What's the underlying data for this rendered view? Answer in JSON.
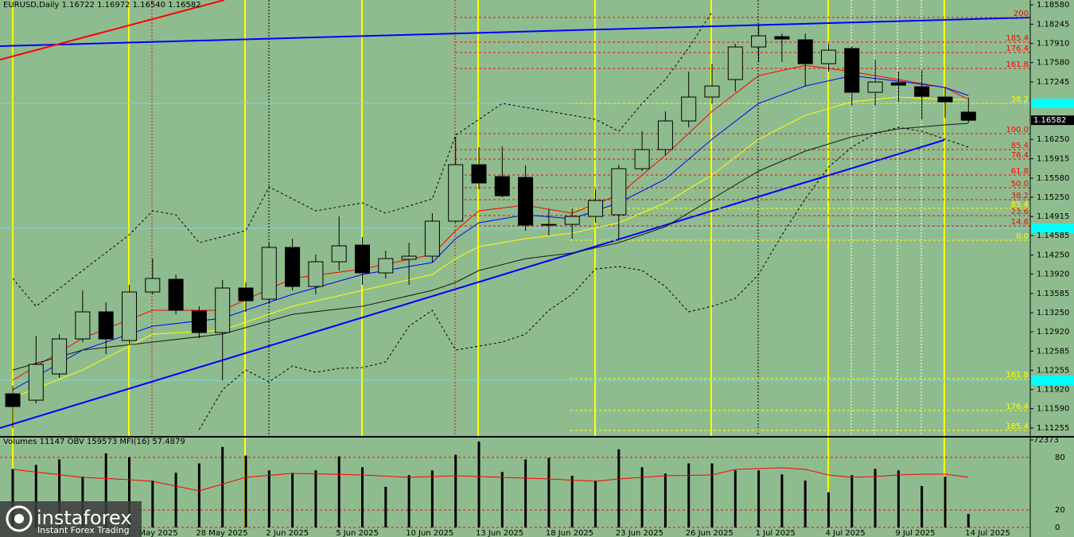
{
  "chart_data": [
    {
      "type": "candlestick",
      "title": "EURUSD,Daily  1.16722 1.16972 1.16540 1.16582",
      "categories": [
        null,
        null,
        null,
        null,
        null,
        "27 May 2025",
        null,
        null,
        "28 May 2025",
        null,
        null,
        "2 Jun 2025",
        null,
        null,
        "5 Jun 2025",
        null,
        null,
        "10 Jun 2025",
        null,
        null,
        "13 Jun 2025",
        null,
        null,
        "18 Jun 2025",
        null,
        null,
        "23 Jun 2025",
        null,
        null,
        "26 Jun 2025",
        null,
        null,
        "1 Jul 2025",
        null,
        null,
        "4 Jul 2025",
        null,
        null,
        "9 Jul 2025",
        null,
        null,
        "14 Jul 2025"
      ],
      "open": [
        1.11846,
        1.11736,
        1.12191,
        1.12797,
        1.13265,
        1.12769,
        1.13609,
        1.13829,
        1.13279,
        1.12907,
        1.13678,
        1.13485,
        1.1438,
        1.13705,
        1.14132,
        1.14421,
        1.1394,
        1.14174,
        1.14229,
        1.14835,
        1.15812,
        1.15606,
        1.15592,
        1.14779,
        1.14779,
        1.14917,
        1.14945,
        1.15743,
        1.16074,
        1.1657,
        1.16983,
        1.17286,
        1.1785,
        1.18029,
        1.17974,
        1.17561,
        1.17823,
        1.17065,
        1.1723,
        1.17162,
        1.16983,
        1.16722
      ],
      "high": [
        1.11984,
        1.12852,
        1.12879,
        1.13637,
        1.1343,
        1.13733,
        1.14187,
        1.13912,
        1.13361,
        1.13816,
        1.13774,
        1.14463,
        1.14532,
        1.14256,
        1.14917,
        1.14559,
        1.14325,
        1.14463,
        1.14972,
        1.16294,
        1.16115,
        1.16129,
        1.15798,
        1.15041,
        1.15055,
        1.15385,
        1.15812,
        1.16391,
        1.16735,
        1.17423,
        1.17561,
        1.17905,
        1.1825,
        1.18084,
        1.18084,
        1.17905,
        1.17864,
        1.1763,
        1.17423,
        1.17451,
        1.17148,
        1.16972
      ],
      "low": [
        1.11254,
        1.11681,
        1.12122,
        1.12742,
        1.12535,
        1.12714,
        1.13568,
        1.13223,
        1.1281,
        1.12081,
        1.13265,
        1.13402,
        1.13637,
        1.13568,
        1.13981,
        1.13733,
        1.13843,
        1.13733,
        1.14119,
        1.14807,
        1.15385,
        1.15248,
        1.14669,
        1.14587,
        1.14532,
        1.14807,
        1.1449,
        1.15702,
        1.15977,
        1.16459,
        1.16873,
        1.17079,
        1.17589,
        1.17589,
        1.17175,
        1.17423,
        1.16831,
        1.16831,
        1.169,
        1.16597,
        1.16625,
        1.1654
      ],
      "close": [
        1.11626,
        1.12356,
        1.12797,
        1.13265,
        1.12797,
        1.13609,
        1.13843,
        1.13292,
        1.12907,
        1.13678,
        1.13458,
        1.1438,
        1.13705,
        1.14132,
        1.14408,
        1.1394,
        1.14187,
        1.14229,
        1.14835,
        1.15812,
        1.15496,
        1.15275,
        1.14766,
        1.14766,
        1.14917,
        1.15193,
        1.15743,
        1.16074,
        1.1657,
        1.16983,
        1.17175,
        1.1785,
        1.18043,
        1.17988,
        1.17561,
        1.17795,
        1.17065,
        1.17244,
        1.17189,
        1.16996,
        1.169,
        1.16582
      ],
      "up_color": "#8fbc8f",
      "down_color": "#000000",
      "wick_color": "#000000",
      "ylim": [
        1.11117,
        1.18663
      ],
      "yticks": [
        {
          "value": 1.1858,
          "label": "1.18580"
        },
        1.18245,
        {
          "value": 1.1791,
          "label": "1.17910"
        },
        {
          "value": 1.1758,
          "label": "1.17580"
        },
        1.17245,
        {
          "value": 1.1625,
          "label": "1.16250"
        },
        1.15915,
        {
          "value": 1.1558,
          "label": "1.15580"
        },
        {
          "value": 1.1525,
          "label": "1.15250"
        },
        1.14915,
        1.14585,
        {
          "value": 1.1425,
          "label": "1.14250"
        },
        {
          "value": 1.1392,
          "label": "1.13920"
        },
        1.13585,
        {
          "value": 1.1325,
          "label": "1.13250"
        },
        {
          "value": 1.1292,
          "label": "1.12920"
        },
        1.12585,
        1.12255,
        {
          "value": 1.1192,
          "label": "1.11920"
        },
        {
          "value": 1.1159,
          "label": "1.11590"
        },
        1.11255
      ],
      "overlays": [
        {
          "color": "#000000",
          "dash": true,
          "x": [
            0,
            1,
            3,
            5,
            6,
            7,
            8,
            10,
            11,
            13,
            15,
            16,
            18,
            19,
            21,
            23,
            25,
            26,
            27,
            28,
            29,
            30
          ],
          "values": [
            1.13843,
            1.13361,
            1.13981,
            1.146,
            1.15014,
            1.14945,
            1.14463,
            1.14669,
            1.15427,
            1.15014,
            1.15151,
            1.14972,
            1.1522,
            1.16322,
            1.16873,
            1.16735,
            1.16597,
            1.16391,
            1.16873,
            1.17286,
            1.17836,
            1.18456
          ]
        },
        {
          "color": "#000000",
          "dash": true,
          "x": [
            8,
            9,
            10,
            11,
            12,
            13,
            14,
            15,
            16,
            17,
            18,
            19,
            20,
            21,
            22,
            23,
            24,
            25,
            26,
            27,
            28,
            29,
            30,
            31,
            32,
            33,
            34,
            35,
            36,
            37,
            38,
            39,
            40,
            41
          ],
          "values": [
            1.11227,
            1.11915,
            1.12259,
            1.12053,
            1.12328,
            1.12218,
            1.12287,
            1.12301,
            1.12397,
            1.13017,
            1.13292,
            1.12604,
            1.12673,
            1.12742,
            1.12879,
            1.13292,
            1.13568,
            1.14008,
            1.1405,
            1.13981,
            1.13705,
            1.13265,
            1.13361,
            1.13499,
            1.13912,
            1.146,
            1.1522,
            1.15771,
            1.16115,
            1.16349,
            1.16459,
            1.16391,
            1.16253,
            1.16115
          ]
        },
        {
          "color": "#ff0000",
          "dash": false,
          "x": [
            0,
            3,
            6,
            9,
            12,
            15,
            18,
            19,
            20,
            22,
            24,
            26,
            28,
            30,
            32,
            34,
            36,
            38,
            40,
            41
          ],
          "values": [
            1.12081,
            1.1281,
            1.13292,
            1.13292,
            1.13843,
            1.14008,
            1.14256,
            1.14669,
            1.15014,
            1.1511,
            1.14972,
            1.15289,
            1.15977,
            1.16735,
            1.17354,
            1.17533,
            1.17423,
            1.17286,
            1.17148,
            1.16941
          ]
        },
        {
          "color": "#0000ff",
          "dash": false,
          "x": [
            0,
            3,
            6,
            9,
            12,
            15,
            18,
            19,
            20,
            22,
            24,
            26,
            28,
            30,
            32,
            34,
            36,
            38,
            40,
            41
          ],
          "values": [
            1.11915,
            1.12604,
            1.13017,
            1.13155,
            1.13568,
            1.13912,
            1.14119,
            1.14532,
            1.14807,
            1.14945,
            1.14876,
            1.15151,
            1.15564,
            1.16253,
            1.16873,
            1.17175,
            1.17354,
            1.17258,
            1.17148,
            1.1701
          ]
        },
        {
          "color": "#ffff00",
          "dash": false,
          "x": [
            0,
            3,
            6,
            9,
            12,
            15,
            18,
            19,
            20,
            22,
            24,
            26,
            28,
            30,
            32,
            34,
            36,
            38,
            40,
            41
          ],
          "values": [
            1.11778,
            1.12259,
            1.12879,
            1.12948,
            1.13361,
            1.13637,
            1.13912,
            1.14187,
            1.14394,
            1.14532,
            1.14628,
            1.14807,
            1.15151,
            1.15633,
            1.16253,
            1.16666,
            1.169,
            1.16983,
            1.16941,
            1.16941
          ]
        },
        {
          "color": "#1a1a1a",
          "dash": false,
          "x": [
            0,
            3,
            6,
            9,
            12,
            15,
            18,
            19,
            20,
            22,
            24,
            26,
            28,
            30,
            32,
            34,
            36,
            38,
            40,
            41
          ],
          "values": [
            1.12259,
            1.12604,
            1.12742,
            1.12879,
            1.13223,
            1.13361,
            1.13637,
            1.13774,
            1.13981,
            1.14187,
            1.14284,
            1.14463,
            1.14738,
            1.1522,
            1.15702,
            1.16046,
            1.16294,
            1.16432,
            1.16501,
            1.16528
          ]
        }
      ],
      "levels": [
        {
          "label": "200",
          "value": 1.1836,
          "color": "#ff0000"
        },
        {
          "label": "185.4",
          "value": 1.17933,
          "color": "#ff0000"
        },
        {
          "label": "176.4",
          "value": 1.17754,
          "color": "#ff0000"
        },
        {
          "label": "161.8",
          "value": 1.17478,
          "color": "#ff0000"
        },
        {
          "label": "100.0",
          "value": 1.16349,
          "color": "#ff0000"
        },
        {
          "label": "85.4",
          "value": 1.16074,
          "color": "#ff0000"
        },
        {
          "label": "76.4",
          "value": 1.15909,
          "color": "#ff0000"
        },
        {
          "label": "61.8",
          "value": 1.15633,
          "color": "#ff0000"
        },
        {
          "label": "50.0",
          "value": 1.15413,
          "color": "#ff0000"
        },
        {
          "label": "38.2",
          "value": 1.15206,
          "color": "#ff0000"
        },
        {
          "label": "23.6",
          "value": 1.14931,
          "color": "#ff0000"
        },
        {
          "label": "14.6",
          "value": 1.14752,
          "color": "#ff0000"
        },
        {
          "label": "38.2",
          "value": 1.16873,
          "color": "#ffff00"
        },
        {
          "label": "85.4",
          "value": 1.15055,
          "color": "#ffff00"
        },
        {
          "label": "0.0",
          "value": 1.14504,
          "color": "#ffff00"
        },
        {
          "label": "161.8",
          "value": 1.12108,
          "color": "#ffff00"
        },
        {
          "label": "176.4",
          "value": 1.11557,
          "color": "#ffff00"
        },
        {
          "label": "185.4",
          "value": 1.11213,
          "color": "#ffff00"
        }
      ]
    },
    {
      "type": "volume",
      "title": "Volumes 11147 OBV 159573 MFI(16) 57.4879",
      "values": [
        48465,
        51696,
        56219,
        42003,
        61389,
        58158,
        38772,
        45234,
        52988,
        66559,
        59450,
        47173,
        45234,
        47173,
        58804,
        49757,
        33602,
        43295,
        47173,
        60097,
        71082,
        45880,
        56219,
        57512,
        42649,
        38772,
        64620,
        49757,
        44588,
        52988,
        52988,
        47173,
        47173,
        43942,
        38772,
        29079,
        43295,
        48465,
        47173,
        34249,
        42003,
        11147
      ],
      "color": "#000000",
      "ylim": [
        0,
        72373
      ],
      "yticks": [
        72373
      ],
      "y2lim": [
        0,
        100
      ],
      "y2ticks": [
        80,
        20,
        0
      ],
      "series": [
        {
          "axis": "y2",
          "color": "#ff0000",
          "x": [
            0,
            3,
            5,
            6,
            8,
            10,
            12,
            15,
            17,
            19,
            21,
            23,
            25,
            26,
            28,
            30,
            31,
            33,
            34,
            35,
            36,
            37,
            38,
            39,
            40,
            41
          ],
          "values": [
            66.4,
            57.3,
            54.5,
            52.7,
            41.8,
            57.3,
            61.8,
            60,
            57.3,
            59.1,
            57.3,
            55.5,
            52.7,
            55.5,
            59.1,
            60,
            66.4,
            68.2,
            66.4,
            60,
            57.3,
            58.2,
            60,
            60.9,
            60.9,
            57.4879
          ]
        }
      ]
    }
  ],
  "watermark": {
    "name": "instaforex",
    "tagline": "Instant Forex Trading"
  }
}
